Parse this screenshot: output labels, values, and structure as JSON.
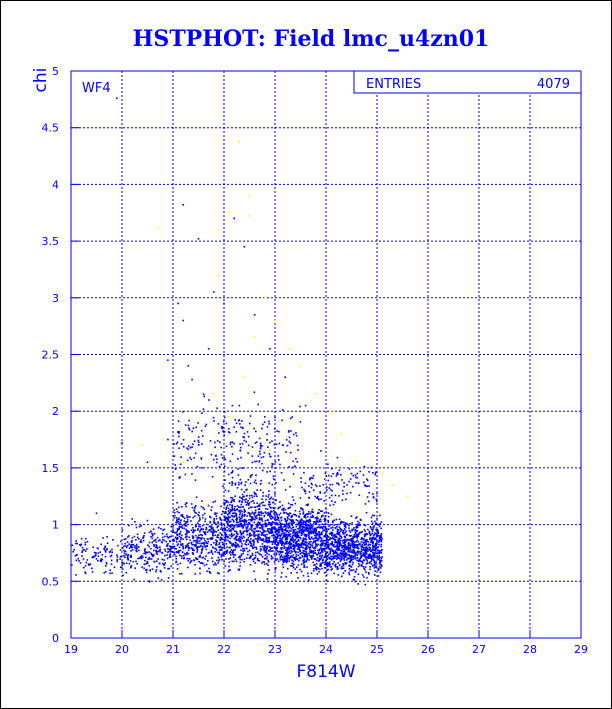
{
  "chart_data": {
    "type": "scatter",
    "title": "HSTPHOT: Field lmc_u4zn01",
    "xlabel": "F814W",
    "ylabel": "chi",
    "xlim": [
      19,
      29
    ],
    "ylim": [
      0,
      5
    ],
    "xticks": [
      "19",
      "20",
      "21",
      "22",
      "23",
      "24",
      "25",
      "26",
      "27",
      "28",
      "29"
    ],
    "yticks": [
      "0",
      "0.5",
      "1",
      "1.5",
      "2",
      "2.5",
      "3",
      "3.5",
      "4",
      "4.5",
      "5"
    ],
    "grid": true,
    "panel_label": "WF4",
    "stats_box": {
      "label": "ENTRIES",
      "value": "4079"
    },
    "colors": {
      "main": "#0000ff",
      "secondary": "#ffff00"
    },
    "series": [
      {
        "color": "#0000ff",
        "points": [
          [
            19.9,
            4.76
          ],
          [
            21.2,
            3.82
          ],
          [
            21.5,
            3.52
          ],
          [
            21.8,
            3.05
          ],
          [
            22.0,
            2.95
          ],
          [
            22.2,
            3.7
          ],
          [
            22.4,
            3.45
          ],
          [
            21.1,
            2.95
          ],
          [
            21.2,
            2.8
          ],
          [
            20.9,
            2.45
          ],
          [
            21.7,
            2.55
          ],
          [
            22.6,
            2.85
          ],
          [
            22.9,
            2.55
          ],
          [
            23.2,
            2.3
          ],
          [
            23.6,
            2.05
          ],
          [
            21.3,
            2.4
          ],
          [
            21.6,
            2.15
          ],
          [
            22.3,
            2.05
          ],
          [
            20.0,
            1.72
          ],
          [
            20.5,
            1.55
          ],
          [
            20.9,
            1.75
          ],
          [
            21.4,
            1.85
          ],
          [
            22.8,
            1.95
          ],
          [
            23.9,
            1.65
          ],
          [
            24.5,
            1.45
          ],
          [
            22.7,
            1.76
          ],
          [
            19.5,
            1.1
          ],
          [
            20.2,
            1.05
          ],
          [
            21.0,
            0.3
          ],
          [
            21.0,
            0.34
          ]
        ],
        "clusters": [
          {
            "x": [
              19.0,
              20.0
            ],
            "y": [
              0.5,
              0.95
            ],
            "count": 110
          },
          {
            "x": [
              20.0,
              21.0
            ],
            "y": [
              0.45,
              1.1
            ],
            "count": 260
          },
          {
            "x": [
              21.0,
              22.0
            ],
            "y": [
              0.45,
              1.3
            ],
            "count": 480
          },
          {
            "x": [
              22.0,
              23.0
            ],
            "y": [
              0.45,
              1.5
            ],
            "count": 820
          },
          {
            "x": [
              23.0,
              24.0
            ],
            "y": [
              0.45,
              1.3
            ],
            "count": 1000
          },
          {
            "x": [
              24.0,
              25.1
            ],
            "y": [
              0.45,
              1.15
            ],
            "count": 900
          },
          {
            "x": [
              21.0,
              23.5
            ],
            "y": [
              1.1,
              2.3
            ],
            "count": 260
          },
          {
            "x": [
              23.5,
              25.0
            ],
            "y": [
              1.1,
              1.6
            ],
            "count": 120
          }
        ]
      },
      {
        "color": "#ffff00",
        "points": [
          [
            22.3,
            4.38
          ],
          [
            22.5,
            3.9
          ],
          [
            22.5,
            3.72
          ],
          [
            22.1,
            3.75
          ],
          [
            21.9,
            3.6
          ],
          [
            20.7,
            3.62
          ],
          [
            21.9,
            3.2
          ],
          [
            22.8,
            3.0
          ],
          [
            23.0,
            2.8
          ],
          [
            22.6,
            2.65
          ],
          [
            23.3,
            2.55
          ],
          [
            23.5,
            2.4
          ],
          [
            22.4,
            2.3
          ],
          [
            23.8,
            2.15
          ],
          [
            24.1,
            2.0
          ],
          [
            24.3,
            1.8
          ],
          [
            24.6,
            1.55
          ],
          [
            25.1,
            1.45
          ],
          [
            25.3,
            1.35
          ],
          [
            25.6,
            1.25
          ],
          [
            24.8,
            1.2
          ],
          [
            22.9,
            1.65
          ],
          [
            23.3,
            1.75
          ],
          [
            21.8,
            2.15
          ],
          [
            22.1,
            1.95
          ],
          [
            24.0,
            1.4
          ],
          [
            24.4,
            1.3
          ],
          [
            25.0,
            1.1
          ],
          [
            20.4,
            1.7
          ],
          [
            21.2,
            1.55
          ]
        ]
      }
    ]
  }
}
